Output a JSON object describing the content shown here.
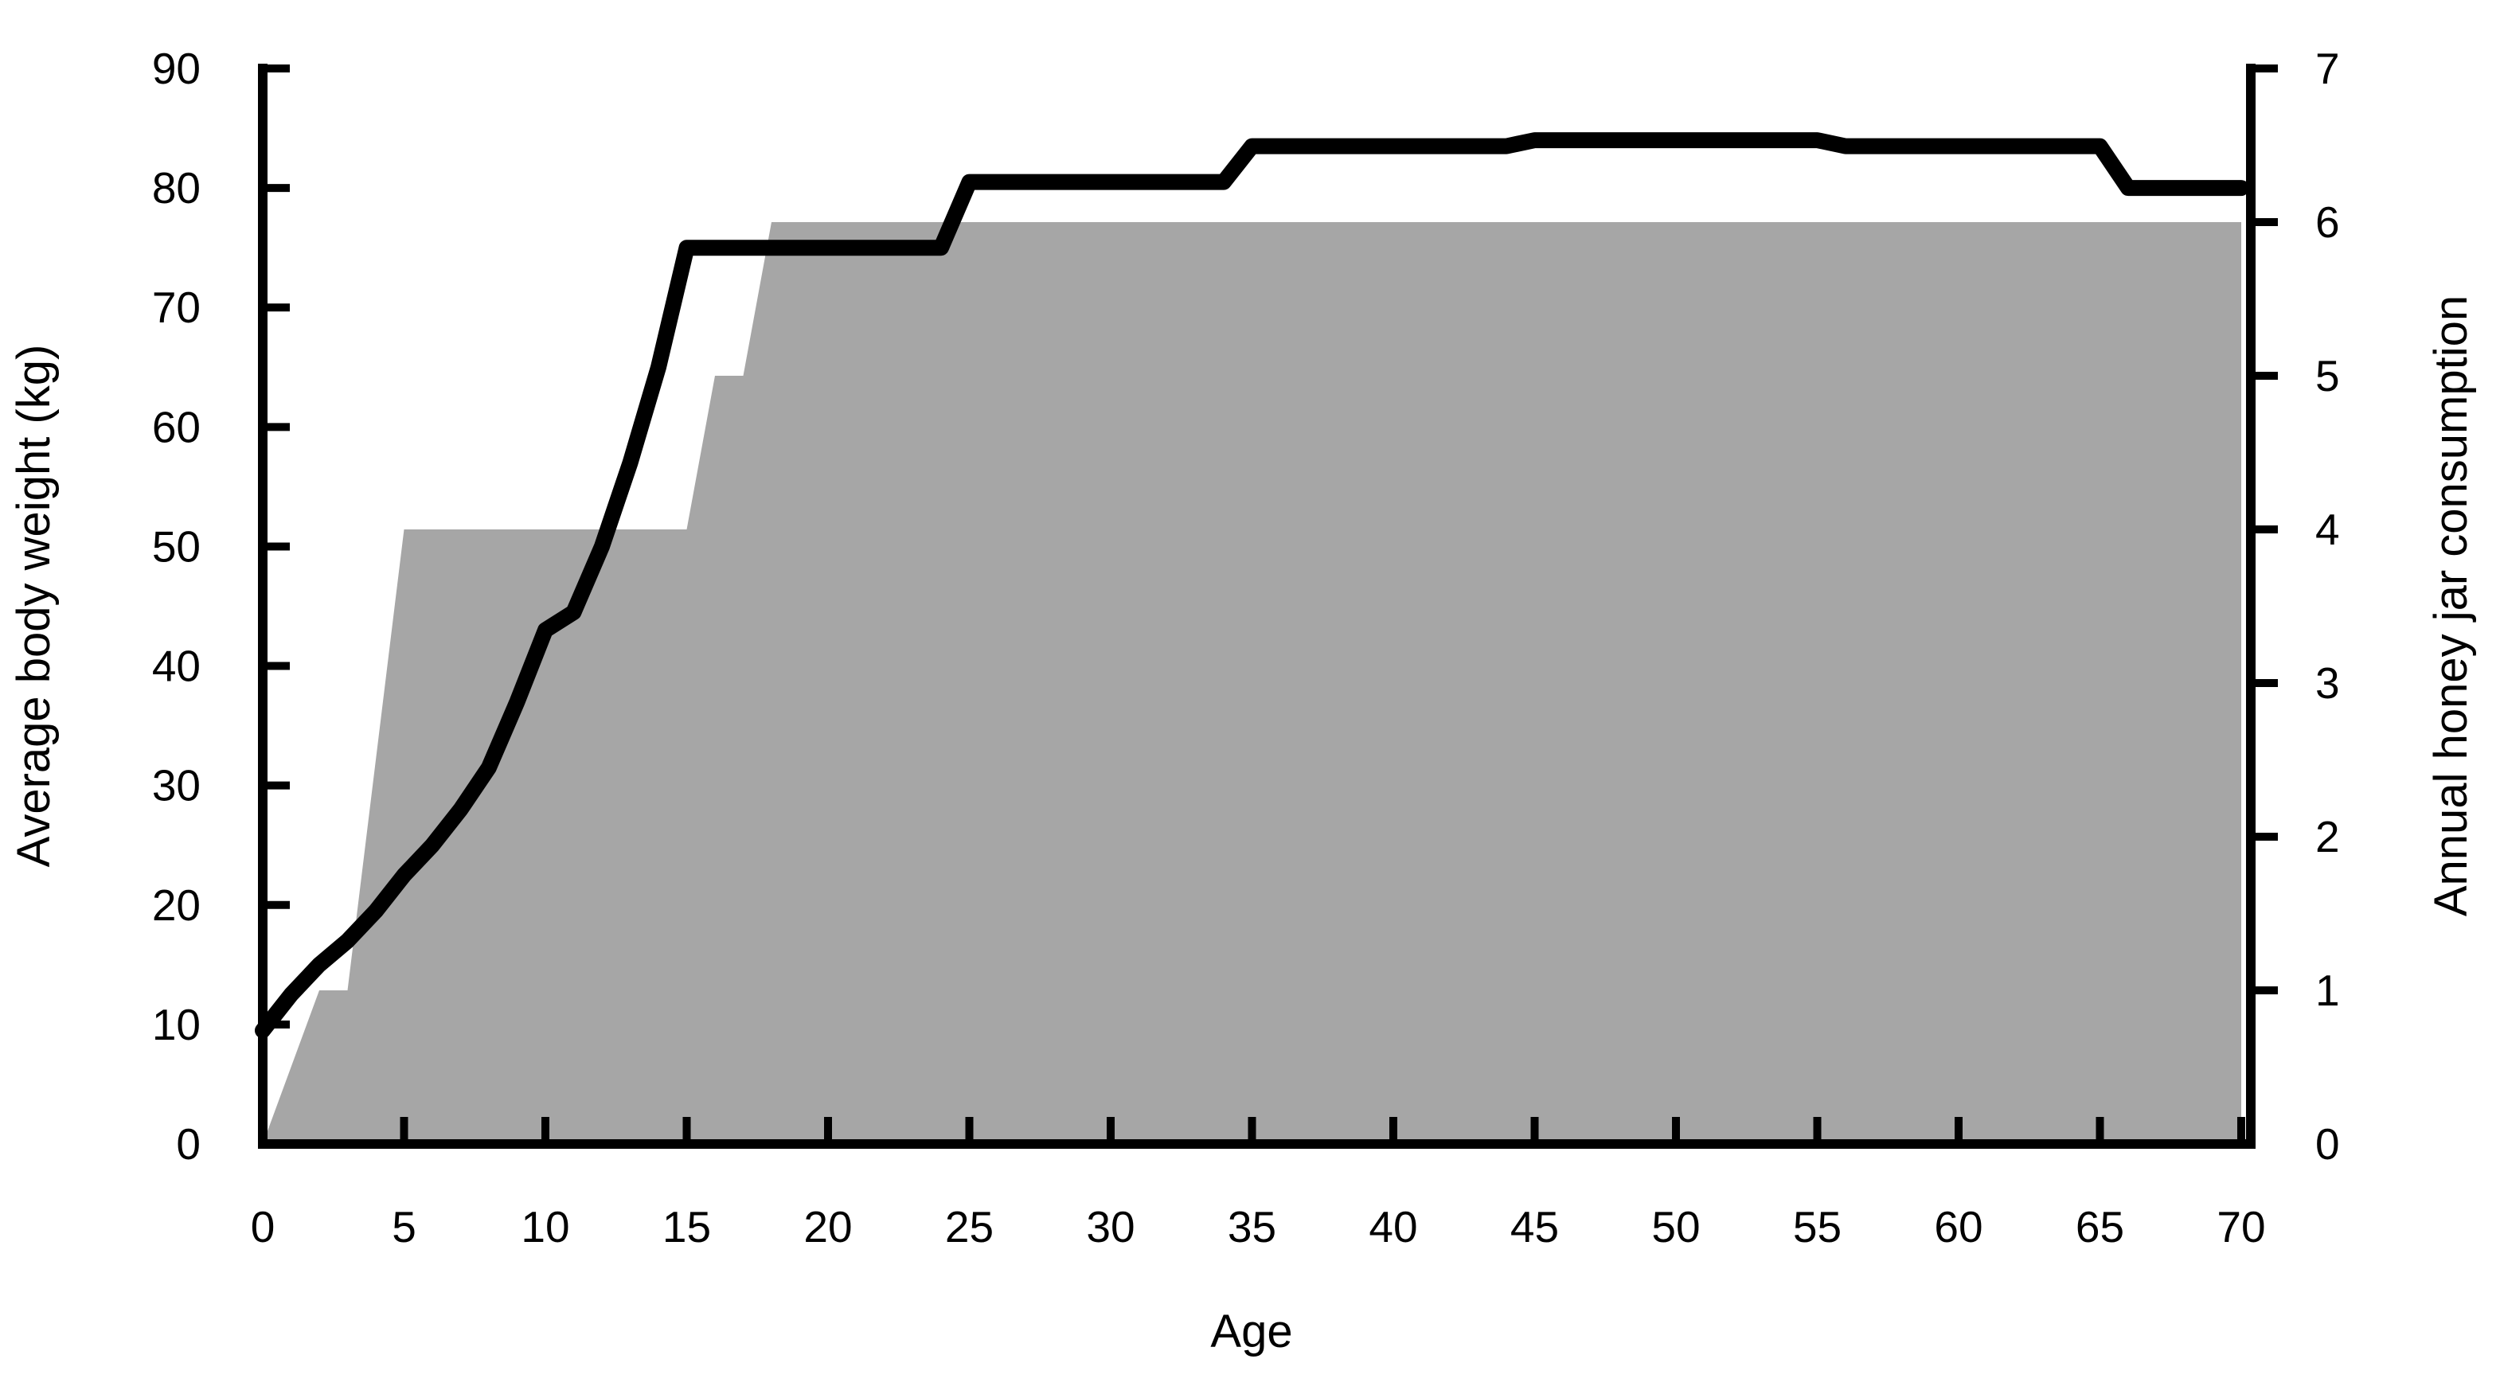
{
  "chart_data": {
    "type": "combo",
    "title": "",
    "grid": false,
    "legend": "none",
    "background": "#ffffff",
    "x": {
      "label": "Age",
      "min": 0,
      "max": 70,
      "ticks": [
        0,
        5,
        10,
        15,
        20,
        25,
        30,
        35,
        40,
        45,
        50,
        55,
        60,
        65,
        70
      ]
    },
    "y_left": {
      "label": "Average body weight (kg)",
      "min": 0,
      "max": 90,
      "ticks": [
        0,
        10,
        20,
        30,
        40,
        50,
        60,
        70,
        80,
        90
      ]
    },
    "y_right": {
      "label": "Annual honey jar consumption",
      "min": 0,
      "max": 7,
      "ticks": [
        0,
        1,
        2,
        3,
        4,
        5,
        6,
        7
      ]
    },
    "series": [
      {
        "name": "Annual honey jar consumption",
        "type": "area",
        "axis": "right",
        "color": "#a6a6a6",
        "x_start": 0,
        "x_step": 1,
        "values": [
          0,
          0.5,
          1,
          1,
          2.5,
          4,
          4,
          4,
          4,
          4,
          4,
          4,
          4,
          4,
          4,
          4,
          5,
          5,
          6,
          6,
          6,
          6,
          6,
          6,
          6,
          6,
          6,
          6,
          6,
          6,
          6,
          6,
          6,
          6,
          6,
          6,
          6,
          6,
          6,
          6,
          6,
          6,
          6,
          6,
          6,
          6,
          6,
          6,
          6,
          6,
          6,
          6,
          6,
          6,
          6,
          6,
          6,
          6,
          6,
          6,
          6,
          6,
          6,
          6,
          6,
          6,
          6,
          6,
          6,
          6,
          6
        ]
      },
      {
        "name": "Average body weight",
        "type": "line",
        "axis": "left",
        "color": "#000000",
        "stroke_width": 20,
        "x_start": 0,
        "x_step": 1,
        "values": [
          9.5,
          12.5,
          15,
          17,
          19.5,
          22.5,
          25,
          28,
          31.5,
          37,
          43,
          44.5,
          50,
          57,
          65,
          75,
          75,
          75,
          75,
          75,
          75,
          75,
          75,
          75,
          75,
          80.5,
          80.5,
          80.5,
          80.5,
          80.5,
          80.5,
          80.5,
          80.5,
          80.5,
          80.5,
          83.5,
          83.5,
          83.5,
          83.5,
          83.5,
          83.5,
          83.5,
          83.5,
          83.5,
          83.5,
          84,
          84,
          84,
          84,
          84,
          84,
          84,
          84,
          84,
          84,
          84,
          83.5,
          83.5,
          83.5,
          83.5,
          83.5,
          83.5,
          83.5,
          83.5,
          83.5,
          83.5,
          80,
          80,
          80,
          80,
          80
        ]
      }
    ]
  }
}
